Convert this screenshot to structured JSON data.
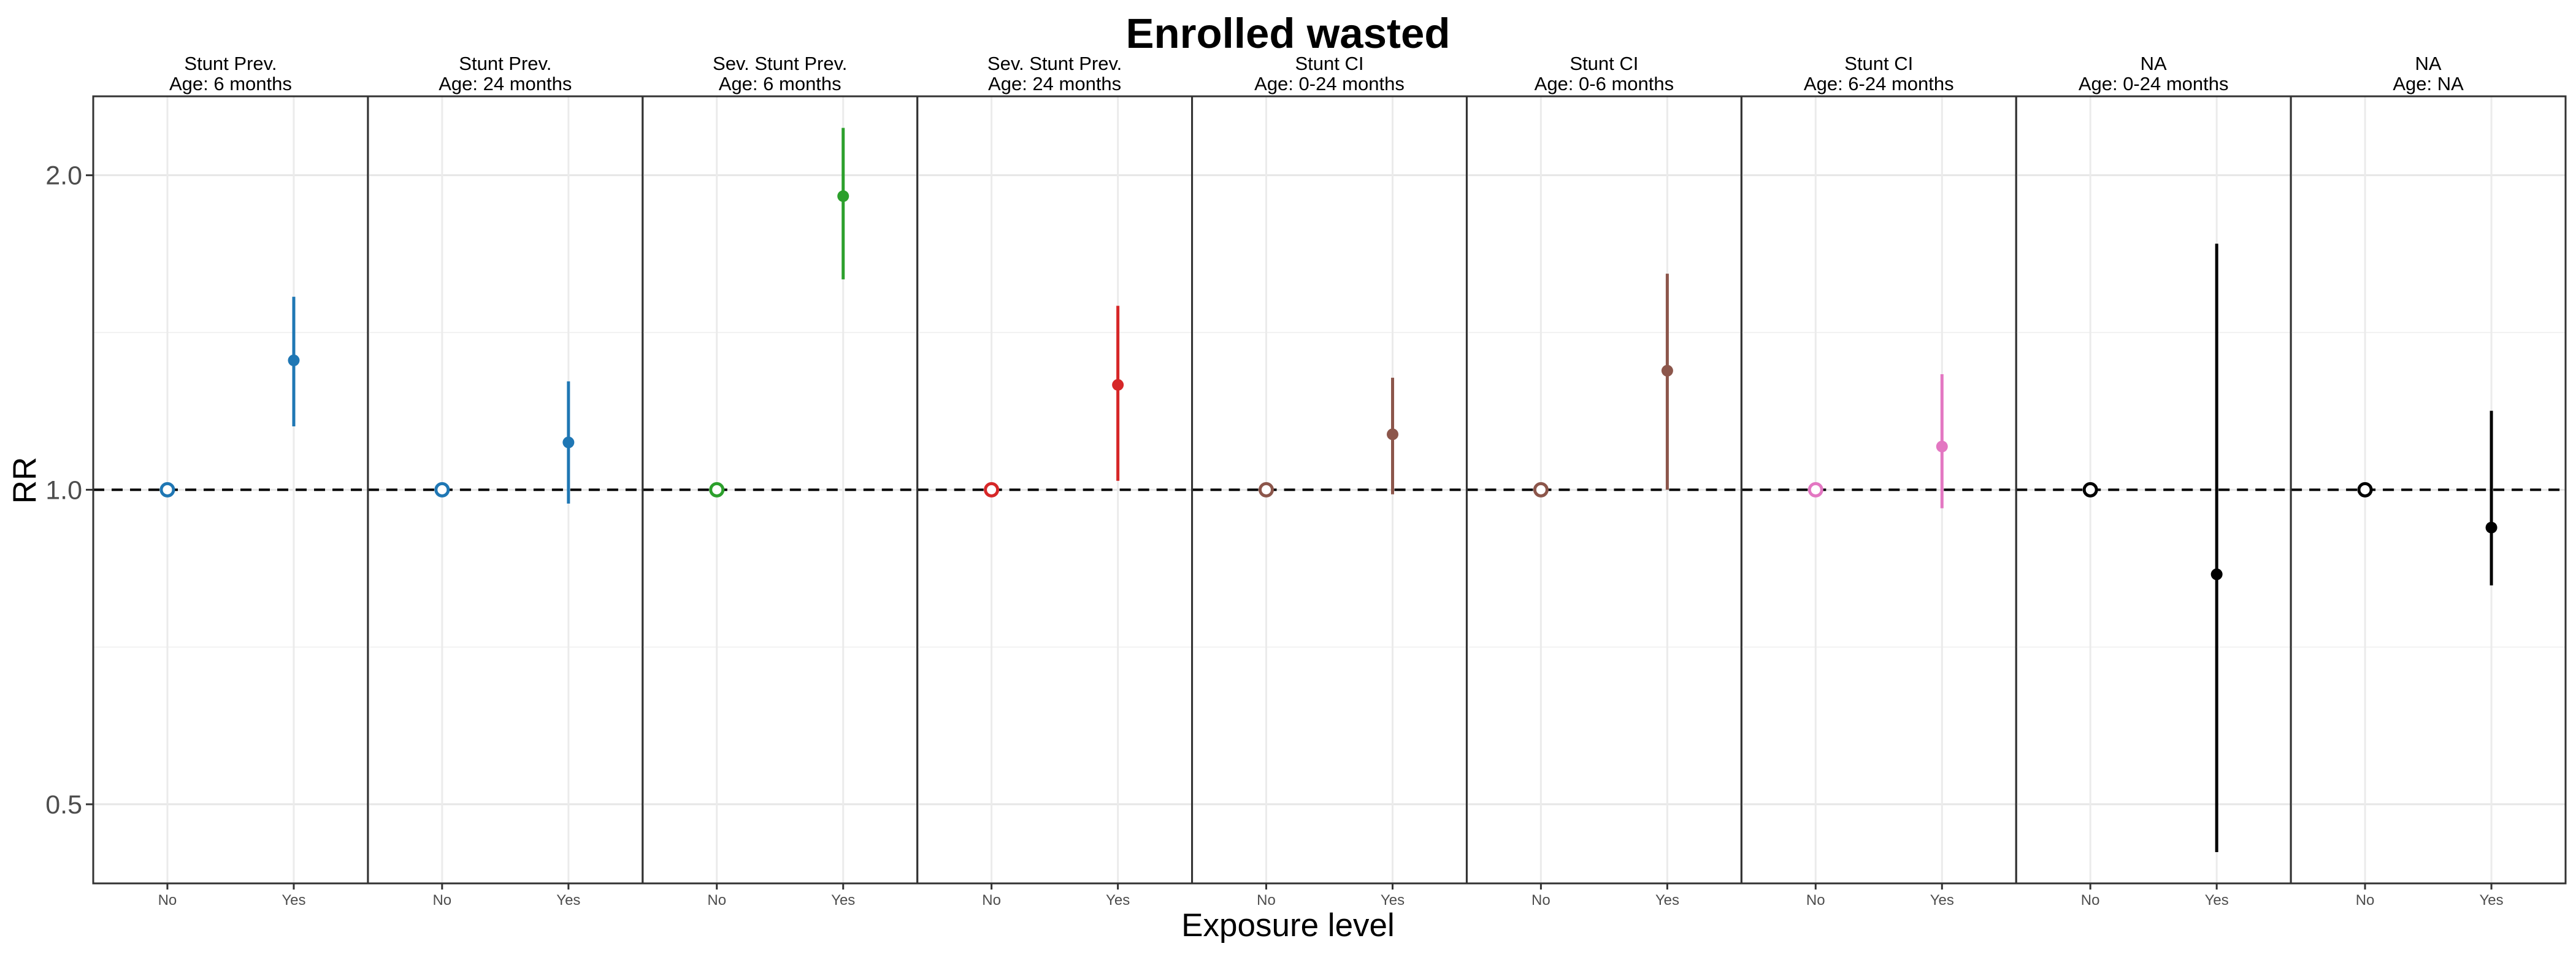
{
  "chart_data": {
    "type": "scatter",
    "title": "Enrolled wasted",
    "xlabel": "Exposure level",
    "ylabel": "RR",
    "y_scale": "log",
    "ylim": [
      0.42,
      2.38
    ],
    "yticks": [
      0.5,
      1.0,
      2.0
    ],
    "ytick_labels": [
      "0.5",
      "1.0",
      "2.0"
    ],
    "categories": [
      "No",
      "Yes"
    ],
    "reference_line": 1.0,
    "grid": true,
    "panels": [
      {
        "line1": "Stunt Prev.",
        "line2": "Age: 6 months",
        "color": "#1f77b4",
        "points": [
          {
            "x": "No",
            "rr": 1.0,
            "reference": true
          },
          {
            "x": "Yes",
            "rr": 1.33,
            "lower": 1.15,
            "upper": 1.53
          }
        ]
      },
      {
        "line1": "Stunt Prev.",
        "line2": "Age: 24 months",
        "color": "#1f77b4",
        "points": [
          {
            "x": "No",
            "rr": 1.0,
            "reference": true
          },
          {
            "x": "Yes",
            "rr": 1.11,
            "lower": 0.97,
            "upper": 1.27
          }
        ]
      },
      {
        "line1": "Sev. Stunt Prev.",
        "line2": "Age: 6 months",
        "color": "#2ca02c",
        "points": [
          {
            "x": "No",
            "rr": 1.0,
            "reference": true
          },
          {
            "x": "Yes",
            "rr": 1.91,
            "lower": 1.59,
            "upper": 2.22
          }
        ]
      },
      {
        "line1": "Sev. Stunt Prev.",
        "line2": "Age: 24 months",
        "color": "#d62728",
        "points": [
          {
            "x": "No",
            "rr": 1.0,
            "reference": true
          },
          {
            "x": "Yes",
            "rr": 1.26,
            "lower": 1.02,
            "upper": 1.5
          }
        ]
      },
      {
        "line1": "Stunt CI",
        "line2": "Age: 0-24 months",
        "color": "#8c564b",
        "points": [
          {
            "x": "No",
            "rr": 1.0,
            "reference": true
          },
          {
            "x": "Yes",
            "rr": 1.13,
            "lower": 0.99,
            "upper": 1.28
          }
        ]
      },
      {
        "line1": "Stunt CI",
        "line2": "Age: 0-6 months",
        "color": "#8c564b",
        "points": [
          {
            "x": "No",
            "rr": 1.0,
            "reference": true
          },
          {
            "x": "Yes",
            "rr": 1.3,
            "lower": 1.0,
            "upper": 1.61
          }
        ]
      },
      {
        "line1": "Stunt CI",
        "line2": "Age: 6-24 months",
        "color": "#e377c2",
        "points": [
          {
            "x": "No",
            "rr": 1.0,
            "reference": true
          },
          {
            "x": "Yes",
            "rr": 1.1,
            "lower": 0.96,
            "upper": 1.29
          }
        ]
      },
      {
        "line1": "NA",
        "line2": "Age: 0-24 months",
        "color": "#000000",
        "points": [
          {
            "x": "No",
            "rr": 1.0,
            "reference": true
          },
          {
            "x": "Yes",
            "rr": 0.83,
            "lower": 0.45,
            "upper": 1.72
          }
        ]
      },
      {
        "line1": "NA",
        "line2": "Age: NA",
        "color": "#000000",
        "points": [
          {
            "x": "No",
            "rr": 1.0,
            "reference": true
          },
          {
            "x": "Yes",
            "rr": 0.92,
            "lower": 0.81,
            "upper": 1.19
          }
        ]
      }
    ]
  }
}
